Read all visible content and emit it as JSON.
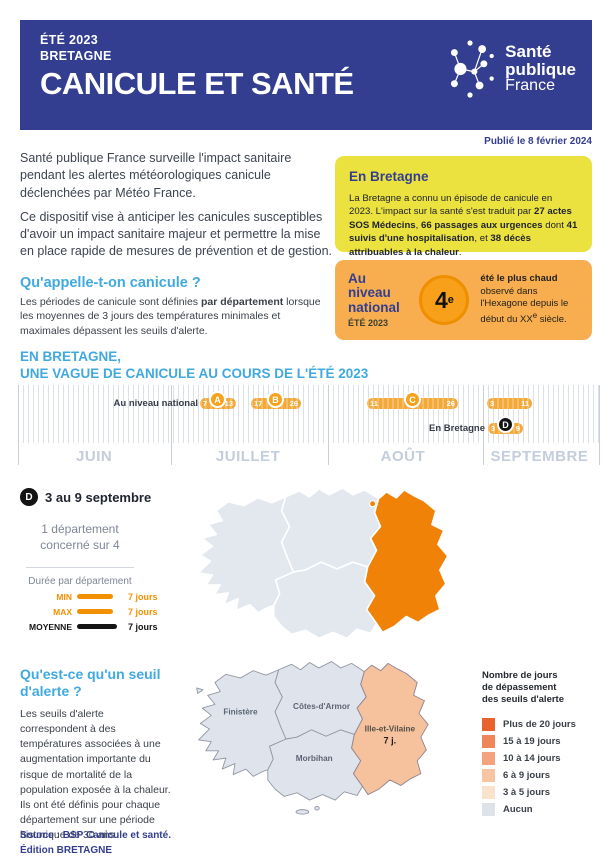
{
  "header": {
    "kicker_line1": "ÉTÉ 2023",
    "kicker_line2": "BRETAGNE",
    "title": "CANICULE ET SANTÉ",
    "logo": {
      "line1": "Santé",
      "line2": "publique",
      "line3": "France"
    }
  },
  "published": "Publié le 8 février 2024",
  "intro": {
    "p1": "Santé publique France surveille l'impact sanitaire pendant les alertes météorologiques canicule déclenchées par Météo France.",
    "p2": "Ce dispositif vise à anticiper les canicules susceptibles d'avoir un impact sanitaire majeur et permettre la mise en place rapide de mesures de prévention et de gestion.",
    "q_title": "Qu'appelle-t-on canicule ?",
    "q_rich": [
      {
        "t": "Les périodes de canicule sont définies "
      },
      {
        "t": "par département",
        "b": true
      },
      {
        "t": " lorsque les moyennes de 3 jours des températures minimales et maximales dépassent les seuils d'alerte."
      }
    ]
  },
  "bretagne_box": {
    "title": "En Bretagne",
    "rich": [
      {
        "t": "La Bretagne a connu un épisode de canicule en 2023. L'impact sur la santé s'est traduit par "
      },
      {
        "t": "27 actes SOS Médecins",
        "b": true
      },
      {
        "t": ", "
      },
      {
        "t": "66 passages aux urgences",
        "b": true
      },
      {
        "t": " dont "
      },
      {
        "t": "41 suivis d'une hospitalisation",
        "b": true
      },
      {
        "t": ", et "
      },
      {
        "t": "38 décès attribuables à la chaleur",
        "b": true
      },
      {
        "t": "."
      }
    ]
  },
  "national_box": {
    "title": "Au niveau national",
    "subtitle": "ÉTÉ 2023",
    "rank": "4",
    "rank_sup": "e",
    "rich": [
      {
        "t": "été le plus chaud",
        "b": true,
        "br": true
      },
      {
        "t": "observé dans l'Hexagone depuis le début du XX"
      },
      {
        "t": "e",
        "sup": true
      },
      {
        "t": " siècle."
      }
    ]
  },
  "timeline": {
    "title_line1": "EN BRETAGNE,",
    "title_line2": "UNE VAGUE DE CANICULE AU COURS DE L'ÉTÉ 2023",
    "months": [
      "JUIN",
      "JUILLET",
      "AOÛT",
      "SEPTEMBRE"
    ],
    "row_national_label": "Au niveau national",
    "row_region_label": "En  Bretagne",
    "episodes_national": [
      {
        "letter": "A",
        "month": "juillet",
        "start": "7",
        "end": "13"
      },
      {
        "letter": "B",
        "month": "juillet",
        "start": "17",
        "end": "26"
      },
      {
        "letter": "C",
        "month": "août",
        "start": "11",
        "end": "26"
      },
      {
        "letter": "",
        "month": "septembre",
        "start": "3",
        "end": "11"
      }
    ],
    "episode_region": {
      "letter": "D",
      "month": "septembre",
      "start": "3",
      "end": "9"
    }
  },
  "detail": {
    "letter": "D",
    "title": "3 au 9 septembre",
    "concerned_line1": "1 département",
    "concerned_line2": "concerné sur 4",
    "duration_label": "Durée par département",
    "rows": [
      {
        "label": "MIN",
        "value": "7 jours",
        "color": "#F29000"
      },
      {
        "label": "MAX",
        "value": "7 jours",
        "color": "#F29000"
      },
      {
        "label": "MOYENNE",
        "value": "7 jours",
        "color": "#141414"
      }
    ]
  },
  "map_bottom_labels": {
    "finistere": "Finistère",
    "cotes": "Côtes-d'Armor",
    "morbihan": "Morbihan",
    "ille": "Ille-et-Vilaine",
    "ille_days": "7 j."
  },
  "alert_section": {
    "title_line1": "Qu'est-ce qu'un seuil",
    "title_line2": "d'alerte ?",
    "body": "Les seuils d'alerte correspondent à des températures associées à une augmentation importante du risque de mortalité de la population exposée à la chaleur. Ils ont été définis pour chaque département sur une période historique de 30 ans."
  },
  "legend": {
    "title_line1": "Nombre de jours",
    "title_line2": "de dépassement",
    "title_line3": "des seuils d'alerte",
    "items": [
      {
        "label": "Plus de 20 jours",
        "color": "#E7622C"
      },
      {
        "label": "15 à 19 jours",
        "color": "#EE8659"
      },
      {
        "label": "10 à 14 jours",
        "color": "#F3A47E"
      },
      {
        "label": "6 à 9 jours",
        "color": "#F7C5A1"
      },
      {
        "label": "3 à 5 jours",
        "color": "#FBE2CC"
      },
      {
        "label": "Aucun",
        "color": "#DEE2E9"
      }
    ]
  },
  "source": {
    "line1": "Source : BSP Canicule et santé.",
    "line2": "Édition BRETAGNE"
  }
}
